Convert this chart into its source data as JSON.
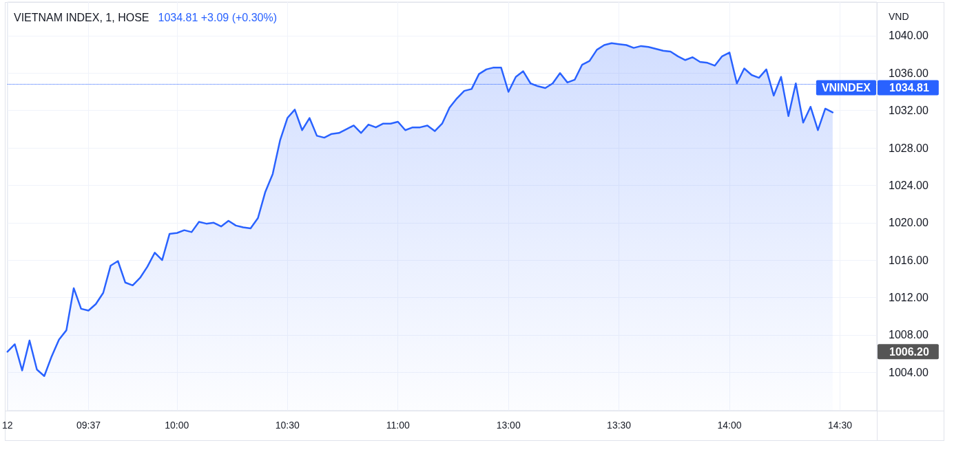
{
  "chart_data": {
    "type": "area",
    "title": "VIETNAM INDEX, 1, HOSE",
    "subtitle": "1034.81 +3.09 (+0.30%)",
    "ylabel": "VND",
    "categories": [
      "12",
      null,
      null,
      null,
      null,
      null,
      null,
      null,
      null,
      null,
      null,
      "09:37",
      null,
      null,
      null,
      null,
      null,
      null,
      null,
      null,
      null,
      null,
      null,
      "10:00",
      null,
      null,
      null,
      null,
      null,
      null,
      null,
      null,
      null,
      null,
      null,
      null,
      null,
      null,
      "10:30",
      null,
      null,
      null,
      null,
      null,
      null,
      null,
      null,
      null,
      null,
      null,
      null,
      null,
      null,
      "11:00",
      null,
      null,
      null,
      null,
      null,
      null,
      null,
      null,
      null,
      null,
      null,
      null,
      null,
      null,
      "13:00",
      null,
      null,
      null,
      null,
      null,
      null,
      null,
      null,
      null,
      null,
      null,
      null,
      null,
      null,
      "13:30",
      null,
      null,
      null,
      null,
      null,
      null,
      null,
      null,
      null,
      null,
      null,
      null,
      null,
      null,
      "14:00",
      null,
      null,
      null,
      null,
      null,
      null,
      null,
      null,
      null,
      null,
      null,
      null,
      null,
      null,
      "14:30"
    ],
    "series": [
      {
        "name": "VNINDEX",
        "color": "#2962ff",
        "values": [
          1006.2,
          1007.0,
          1004.2,
          1007.4,
          1004.3,
          1003.6,
          1005.7,
          1007.5,
          1008.5,
          1013.0,
          1010.8,
          1010.6,
          1011.3,
          1012.5,
          1015.4,
          1015.9,
          1013.6,
          1013.3,
          1014.1,
          1015.3,
          1016.8,
          1016.0,
          1018.8,
          1018.9,
          1019.2,
          1019.0,
          1020.1,
          1019.9,
          1020.0,
          1019.6,
          1020.2,
          1019.7,
          1019.5,
          1019.4,
          1020.5,
          1023.3,
          1025.2,
          1028.8,
          1031.2,
          1032.1,
          1029.9,
          1031.2,
          1029.3,
          1029.1,
          1029.5,
          1029.6,
          1030.0,
          1030.4,
          1029.6,
          1030.5,
          1030.2,
          1030.6,
          1030.6,
          1030.8,
          1029.9,
          1030.2,
          1030.2,
          1030.4,
          1029.8,
          1030.6,
          1032.3,
          1033.3,
          1034.1,
          1034.3,
          1035.9,
          1036.4,
          1036.6,
          1036.6,
          1034.0,
          1035.6,
          1036.2,
          1034.9,
          1034.6,
          1034.4,
          1034.9,
          1036.0,
          1035.0,
          1035.3,
          1036.9,
          1037.3,
          1038.5,
          1039.0,
          1039.2,
          1039.1,
          1039.0,
          1038.7,
          1038.9,
          1038.8,
          1038.6,
          1038.4,
          1038.3,
          1037.8,
          1037.4,
          1037.7,
          1037.2,
          1037.1,
          1036.8,
          1037.8,
          1038.2,
          1034.9,
          1036.5,
          1035.8,
          1035.5,
          1036.4,
          1033.6,
          1035.6,
          1031.4,
          1034.9,
          1030.7,
          1032.4,
          1029.9,
          1032.2,
          1031.8,
          null
        ]
      }
    ],
    "ylim": [
      999.9,
      1043.6
    ],
    "yticks": [
      {
        "value": 1004,
        "label": "1004.00"
      },
      {
        "value": 1008,
        "label": "1008.00"
      },
      {
        "value": 1012,
        "label": "1012.00"
      },
      {
        "value": 1016,
        "label": "1016.00"
      },
      {
        "value": 1020,
        "label": "1020.00"
      },
      {
        "value": 1024,
        "label": "1024.00"
      },
      {
        "value": 1028,
        "label": "1028.00"
      },
      {
        "value": 1032,
        "label": "1032.00"
      },
      {
        "value": 1036,
        "label": "1036.00"
      },
      {
        "value": 1040,
        "label": "1040.00"
      }
    ],
    "ref_lines": [
      {
        "axis": "y",
        "value": 1034.81,
        "label": "1034.81",
        "color": "#2962ff",
        "line_style": "dotted"
      }
    ],
    "annotations": [
      "1006.20"
    ],
    "grid": true,
    "marker": "none"
  }
}
